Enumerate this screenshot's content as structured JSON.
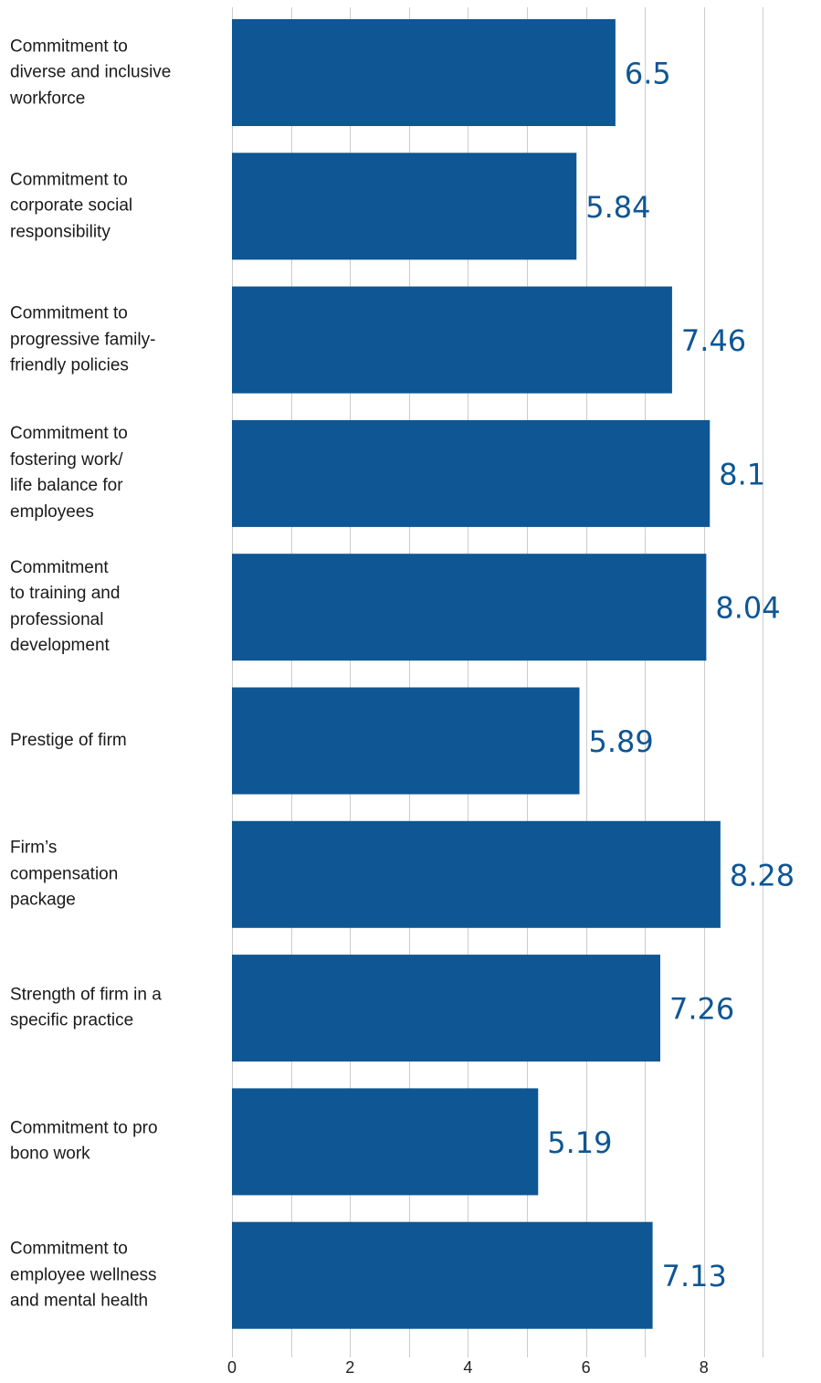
{
  "chart_data": {
    "type": "bar",
    "orientation": "horizontal",
    "categories": [
      "Commitment to\ndiverse and inclusive\nworkforce",
      "Commitment to\ncorporate social\nresponsibility",
      "Commitment to\nprogressive family-\nfriendly policies",
      "Commitment to\nfostering work/\nlife balance for\nemployees",
      "Commitment\nto training and\nprofessional\ndevelopment",
      "Prestige of firm",
      "Firm’s\ncompensation\npackage",
      "Strength of firm in a\nspecific practice",
      "Commitment to pro\nbono work",
      "Commitment to\nemployee wellness\nand mental health"
    ],
    "values": [
      6.5,
      5.84,
      7.46,
      8.1,
      8.04,
      5.89,
      8.28,
      7.26,
      5.19,
      7.13
    ],
    "value_labels": [
      "6.5",
      "5.84",
      "7.46",
      "8.1",
      "8.04",
      "5.89",
      "8.28",
      "7.26",
      "5.19",
      "7.13"
    ],
    "x_ticks": [
      0,
      2,
      4,
      6,
      8
    ],
    "xlim": [
      0,
      9
    ],
    "grid": true,
    "bar_color": "#0e5694",
    "label_color": "#0e5694",
    "grid_color": "#cccccc"
  }
}
